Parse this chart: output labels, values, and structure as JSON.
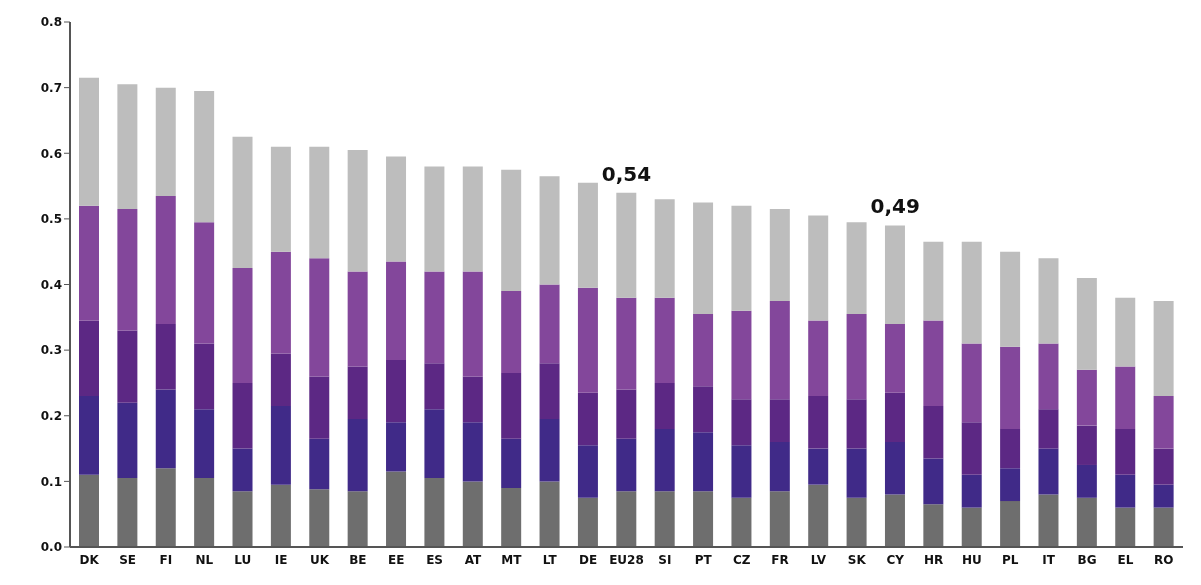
{
  "chart_data": {
    "type": "bar",
    "stacked": true,
    "categories": [
      "DK",
      "SE",
      "FI",
      "NL",
      "LU",
      "IE",
      "UK",
      "BE",
      "EE",
      "ES",
      "AT",
      "MT",
      "LT",
      "DE",
      "EU28",
      "SI",
      "PT",
      "CZ",
      "FR",
      "LV",
      "SK",
      "CY",
      "HR",
      "HU",
      "PL",
      "IT",
      "BG",
      "EL",
      "RO"
    ],
    "series": [
      {
        "color": "#6e6e6e",
        "values": [
          0.11,
          0.105,
          0.12,
          0.105,
          0.085,
          0.095,
          0.088,
          0.085,
          0.115,
          0.105,
          0.1,
          0.09,
          0.1,
          0.075,
          0.085,
          0.085,
          0.085,
          0.075,
          0.085,
          0.095,
          0.075,
          0.08,
          0.065,
          0.06,
          0.07,
          0.08,
          0.075,
          0.06,
          0.06
        ]
      },
      {
        "color": "#402a88",
        "values": [
          0.12,
          0.115,
          0.12,
          0.105,
          0.065,
          0.12,
          0.077,
          0.11,
          0.075,
          0.105,
          0.09,
          0.075,
          0.095,
          0.08,
          0.08,
          0.095,
          0.09,
          0.08,
          0.075,
          0.055,
          0.075,
          0.08,
          0.07,
          0.05,
          0.05,
          0.07,
          0.05,
          0.05,
          0.035
        ]
      },
      {
        "color": "#5c2884",
        "values": [
          0.115,
          0.11,
          0.1,
          0.1,
          0.1,
          0.08,
          0.095,
          0.08,
          0.095,
          0.07,
          0.07,
          0.1,
          0.085,
          0.08,
          0.075,
          0.07,
          0.07,
          0.07,
          0.065,
          0.08,
          0.075,
          0.075,
          0.08,
          0.08,
          0.06,
          0.06,
          0.06,
          0.07,
          0.055
        ]
      },
      {
        "color": "#83479b",
        "values": [
          0.175,
          0.185,
          0.195,
          0.185,
          0.175,
          0.155,
          0.18,
          0.145,
          0.15,
          0.14,
          0.16,
          0.125,
          0.12,
          0.16,
          0.14,
          0.13,
          0.11,
          0.135,
          0.15,
          0.115,
          0.13,
          0.105,
          0.13,
          0.12,
          0.125,
          0.1,
          0.085,
          0.095,
          0.08
        ]
      },
      {
        "color": "#bdbdbd",
        "values": [
          0.195,
          0.19,
          0.165,
          0.2,
          0.2,
          0.16,
          0.17,
          0.185,
          0.16,
          0.16,
          0.16,
          0.185,
          0.165,
          0.16,
          0.16,
          0.15,
          0.17,
          0.16,
          0.14,
          0.16,
          0.14,
          0.15,
          0.12,
          0.155,
          0.145,
          0.13,
          0.14,
          0.105,
          0.145
        ]
      }
    ],
    "ylim": [
      0,
      0.8
    ],
    "yticks": [
      {
        "value": 0,
        "label": "0.0"
      },
      0.1,
      0.2,
      0.3,
      0.4,
      0.5,
      0.6,
      0.7,
      0.8
    ],
    "grid": false,
    "legend": false,
    "annotations": [
      {
        "text": "0,54",
        "x": "EU28",
        "y": 0.54
      },
      {
        "text": "0,49",
        "x": "CY",
        "y": 0.49
      }
    ]
  }
}
